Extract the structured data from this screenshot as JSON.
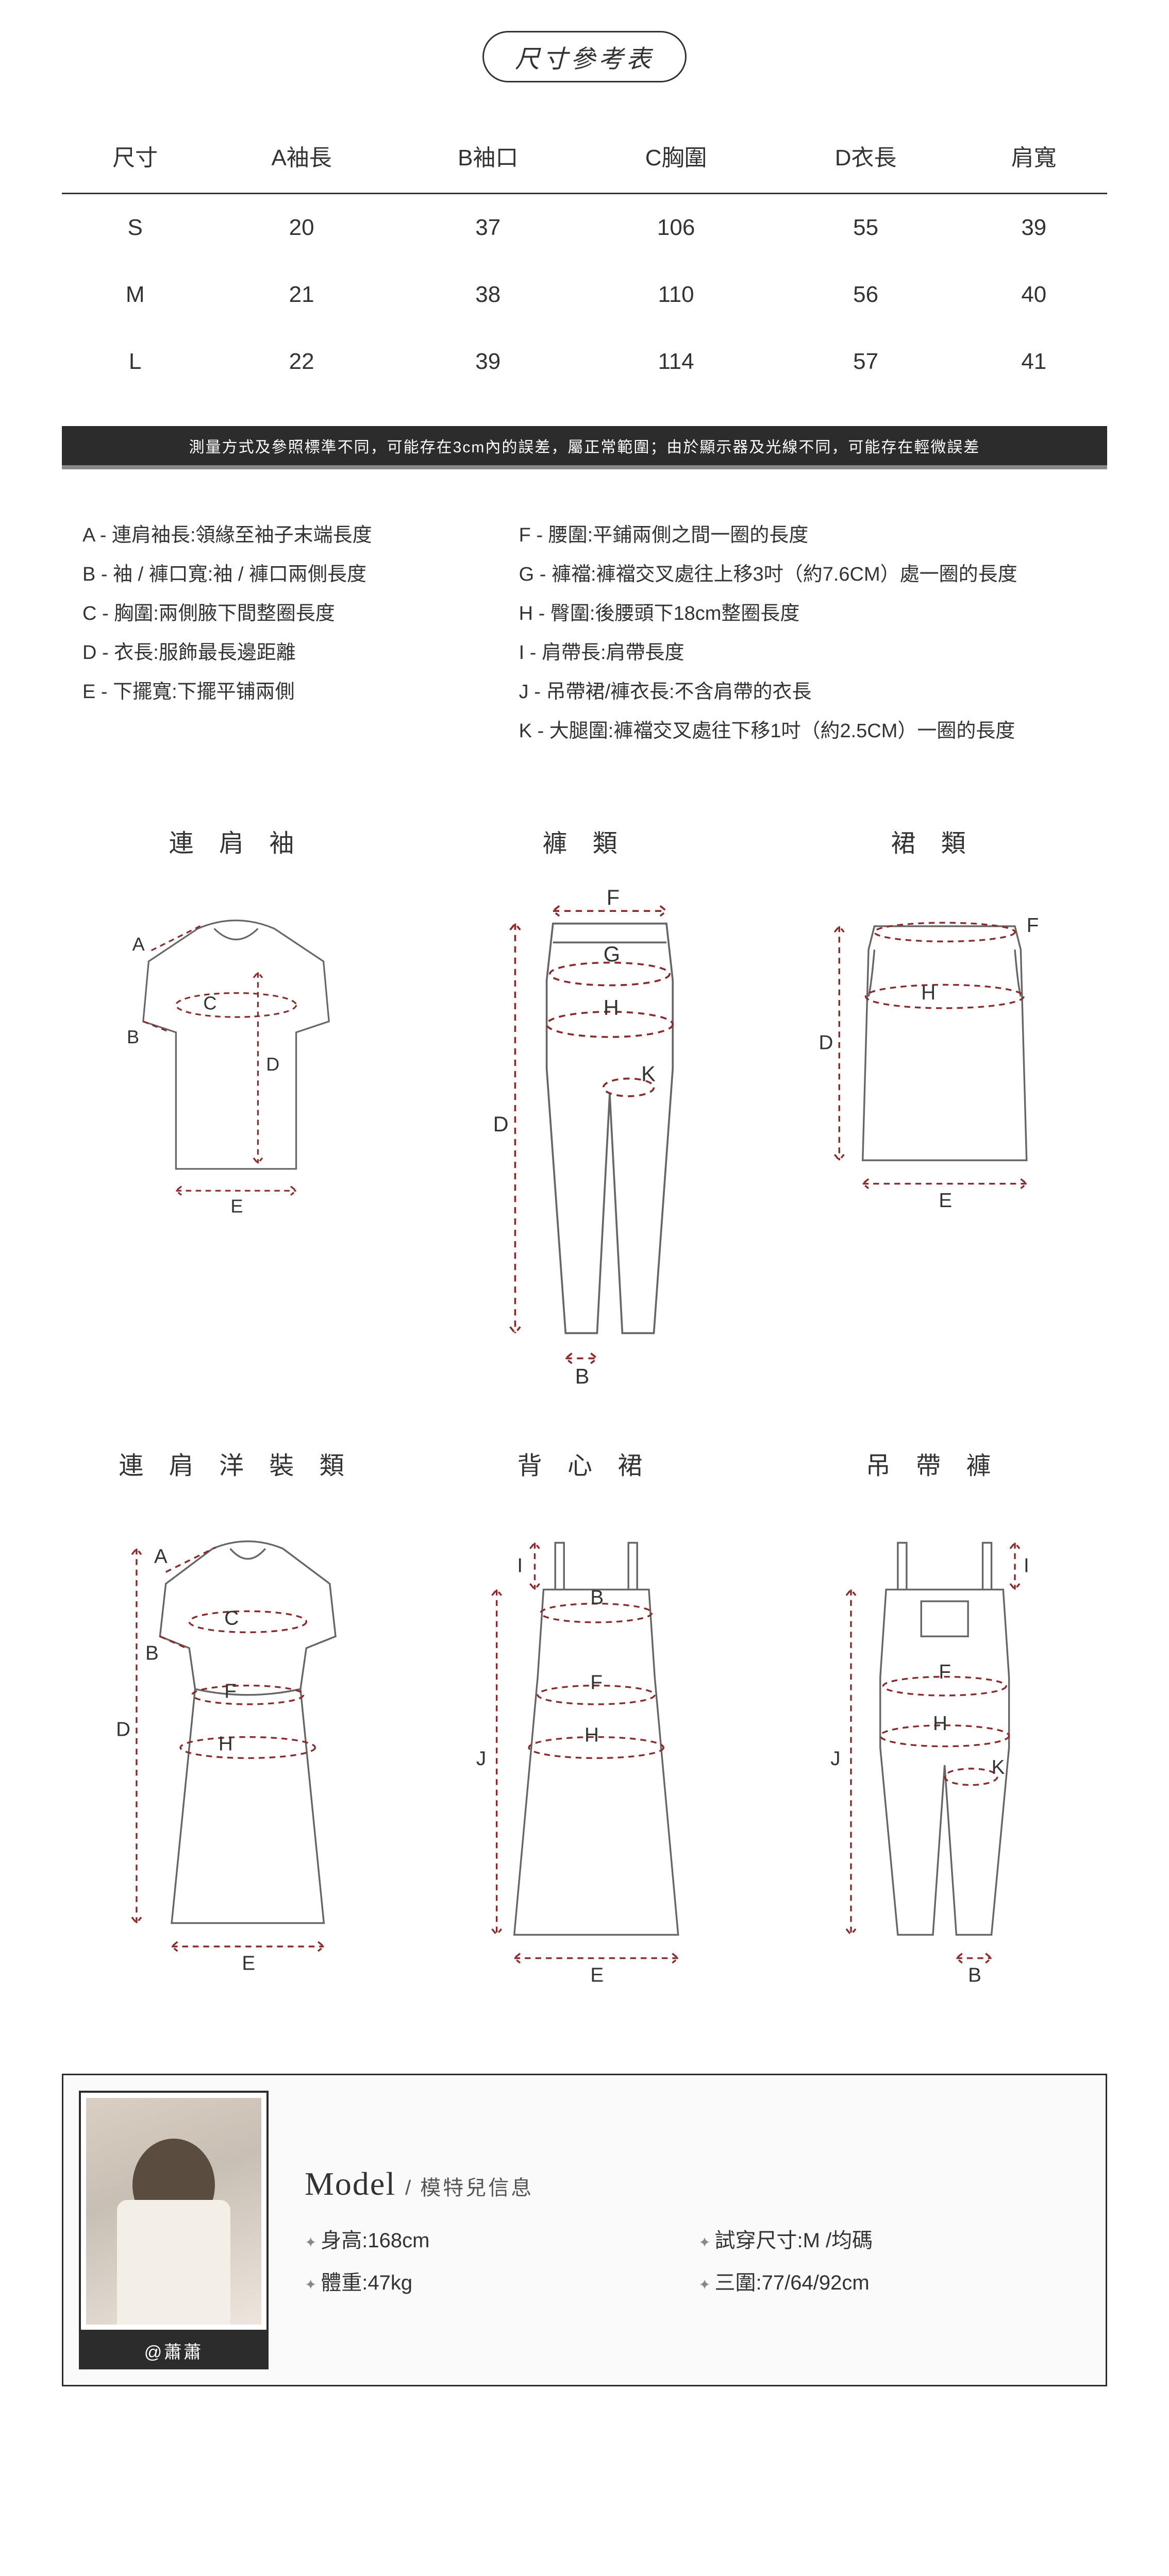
{
  "title": "尺寸參考表",
  "colors": {
    "text": "#333333",
    "bg": "#ffffff",
    "bar_bg": "#2c2c2c",
    "bar_underline": "#888888",
    "outline": "#666666",
    "dash": "#8b2a2a"
  },
  "size_table": {
    "columns": [
      "尺寸",
      "A袖長",
      "B袖口",
      "C胸圍",
      "D衣長",
      "肩寬"
    ],
    "rows": [
      [
        "S",
        "20",
        "37",
        "106",
        "55",
        "39"
      ],
      [
        "M",
        "21",
        "38",
        "110",
        "56",
        "40"
      ],
      [
        "L",
        "22",
        "39",
        "114",
        "57",
        "41"
      ]
    ]
  },
  "note": "測量方式及參照標準不同，可能存在3cm內的誤差，屬正常範圍；由於顯示器及光線不同，可能存在輕微誤差",
  "legend": {
    "left": [
      "A - 連肩袖長:領緣至袖子末端長度",
      "B - 袖 / 褲口寬:袖 / 褲口兩側長度",
      "C - 胸圍:兩側腋下間整圈長度",
      "D - 衣長:服飾最長邊距離",
      "E - 下擺寬:下擺平铺兩側"
    ],
    "right": [
      "F - 腰圍:平鋪兩側之間一圈的長度",
      "G - 褲襠:褲襠交叉處往上移3吋（約7.6CM）處一圈的長度",
      "H - 臀圍:後腰頭下18cm整圈長度",
      "I - 肩帶長:肩帶長度",
      "J - 吊帶裙/褲衣長:不含肩帶的衣長",
      "K - 大腿圍:褲襠交叉處往下移1吋（約2.5CM）一圈的長度"
    ]
  },
  "diagrams": [
    {
      "key": "raglan",
      "title": "連 肩 袖",
      "labels": [
        "A",
        "B",
        "C",
        "D",
        "E"
      ]
    },
    {
      "key": "pants",
      "title": "褲 類",
      "labels": [
        "F",
        "G",
        "H",
        "K",
        "D",
        "B"
      ]
    },
    {
      "key": "skirt",
      "title": "裙 類",
      "labels": [
        "F",
        "H",
        "D",
        "E"
      ]
    },
    {
      "key": "rdress",
      "title": "連 肩 洋 裝 類",
      "labels": [
        "A",
        "B",
        "C",
        "F",
        "H",
        "D",
        "E"
      ]
    },
    {
      "key": "camidress",
      "title": "背 心 裙",
      "labels": [
        "I",
        "B",
        "F",
        "H",
        "J",
        "E"
      ]
    },
    {
      "key": "overalls",
      "title": "吊 帶 褲",
      "labels": [
        "I",
        "F",
        "H",
        "K",
        "J",
        "B"
      ]
    }
  ],
  "model": {
    "handle": "@蕭蕭",
    "heading_en": "Model",
    "heading_zh": "模特兒信息",
    "stats": [
      {
        "label": "身高",
        "value": "168cm"
      },
      {
        "label": "試穿尺寸",
        "value": "M /均碼"
      },
      {
        "label": "體重",
        "value": "47kg"
      },
      {
        "label": "三圍",
        "value": "77/64/92cm"
      }
    ]
  }
}
